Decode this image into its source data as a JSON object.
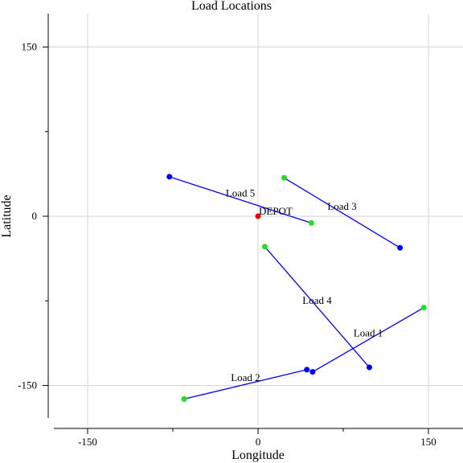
{
  "chart_data": {
    "type": "scatter",
    "title": "Load Locations",
    "xlabel": "Longitude",
    "ylabel": "Latitude",
    "xlim": [
      -180,
      180
    ],
    "ylim": [
      -180,
      180
    ],
    "xticks": [
      -150,
      0,
      150
    ],
    "yticks": [
      -150,
      0,
      150
    ],
    "grid": true,
    "colors": {
      "pickup": "#22dd22",
      "dropoff": "#0000ee",
      "depot": "#ee0000",
      "route": "#0000ff"
    },
    "depot": {
      "label": "DEPOT",
      "x": 0,
      "y": 0
    },
    "loads": [
      {
        "label": "Load 1",
        "pickup": [
          146,
          -81
        ],
        "dropoff": [
          48,
          -138
        ]
      },
      {
        "label": "Load 2",
        "pickup": [
          -65,
          -162
        ],
        "dropoff": [
          43,
          -136
        ]
      },
      {
        "label": "Load 3",
        "pickup": [
          23,
          34
        ],
        "dropoff": [
          125,
          -28
        ]
      },
      {
        "label": "Load 4",
        "pickup": [
          6,
          -27
        ],
        "dropoff": [
          98,
          -134
        ]
      },
      {
        "label": "Load 5",
        "pickup": [
          47,
          -6
        ],
        "dropoff": [
          -78,
          35
        ]
      }
    ]
  }
}
